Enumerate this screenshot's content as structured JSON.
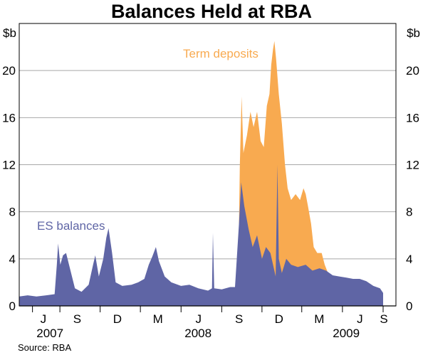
{
  "chart_data": {
    "type": "area",
    "title": "Balances Held at RBA",
    "unit_left": "$b",
    "unit_right": "$b",
    "ylim": [
      0,
      24
    ],
    "yticks": [
      0,
      4,
      8,
      12,
      16,
      20
    ],
    "xlim": [
      "2007-06-01",
      "2009-09-30"
    ],
    "month_ticks": [
      {
        "label": "J",
        "date": "2007-07-01"
      },
      {
        "label": "S",
        "date": "2007-09-01"
      },
      {
        "label": "D",
        "date": "2007-12-01"
      },
      {
        "label": "M",
        "date": "2008-03-01"
      },
      {
        "label": "J",
        "date": "2008-06-01"
      },
      {
        "label": "S",
        "date": "2008-09-01"
      },
      {
        "label": "D",
        "date": "2008-12-01"
      },
      {
        "label": "M",
        "date": "2009-03-01"
      },
      {
        "label": "J",
        "date": "2009-06-01"
      },
      {
        "label": "S",
        "date": "2009-09-01"
      }
    ],
    "year_labels": [
      {
        "label": "2007",
        "date": "2007-08-16"
      },
      {
        "label": "2008",
        "date": "2008-07-16"
      },
      {
        "label": "2009",
        "date": "2009-06-16"
      }
    ],
    "series": [
      {
        "name": "ES balances",
        "color": "#5f65a5",
        "points": [
          [
            "2007-06-01",
            0.8
          ],
          [
            "2007-06-20",
            0.9
          ],
          [
            "2007-07-10",
            0.8
          ],
          [
            "2007-08-01",
            0.9
          ],
          [
            "2007-08-20",
            1.0
          ],
          [
            "2007-08-25",
            3.5
          ],
          [
            "2007-08-28",
            5.3
          ],
          [
            "2007-09-02",
            3.5
          ],
          [
            "2007-09-08",
            4.3
          ],
          [
            "2007-09-15",
            4.5
          ],
          [
            "2007-09-25",
            3.0
          ],
          [
            "2007-10-05",
            1.5
          ],
          [
            "2007-10-20",
            1.2
          ],
          [
            "2007-11-05",
            1.8
          ],
          [
            "2007-11-15",
            3.5
          ],
          [
            "2007-11-20",
            4.3
          ],
          [
            "2007-11-28",
            2.5
          ],
          [
            "2007-12-08",
            4.0
          ],
          [
            "2007-12-15",
            5.8
          ],
          [
            "2007-12-20",
            6.6
          ],
          [
            "2007-12-28",
            4.5
          ],
          [
            "2008-01-05",
            2.0
          ],
          [
            "2008-01-20",
            1.7
          ],
          [
            "2008-02-10",
            1.8
          ],
          [
            "2008-02-25",
            2.0
          ],
          [
            "2008-03-10",
            2.3
          ],
          [
            "2008-03-20",
            3.5
          ],
          [
            "2008-03-28",
            4.2
          ],
          [
            "2008-04-05",
            5.0
          ],
          [
            "2008-04-12",
            3.8
          ],
          [
            "2008-04-25",
            2.5
          ],
          [
            "2008-05-10",
            2.0
          ],
          [
            "2008-06-01",
            1.7
          ],
          [
            "2008-06-20",
            1.8
          ],
          [
            "2008-07-10",
            1.5
          ],
          [
            "2008-08-01",
            1.3
          ],
          [
            "2008-08-10",
            1.5
          ],
          [
            "2008-08-12",
            6.2
          ],
          [
            "2008-08-15",
            1.5
          ],
          [
            "2008-09-01",
            1.4
          ],
          [
            "2008-09-20",
            1.6
          ],
          [
            "2008-10-01",
            1.6
          ],
          [
            "2008-10-05",
            4.0
          ],
          [
            "2008-10-10",
            7.0
          ],
          [
            "2008-10-15",
            10.5
          ],
          [
            "2008-10-22",
            8.5
          ],
          [
            "2008-11-01",
            6.5
          ],
          [
            "2008-11-10",
            5.0
          ],
          [
            "2008-11-20",
            6.0
          ],
          [
            "2008-12-01",
            4.0
          ],
          [
            "2008-12-10",
            5.0
          ],
          [
            "2008-12-20",
            4.5
          ],
          [
            "2009-01-01",
            2.5
          ],
          [
            "2009-01-05",
            12.0
          ],
          [
            "2009-01-08",
            4.0
          ],
          [
            "2009-01-15",
            2.8
          ],
          [
            "2009-01-25",
            4.0
          ],
          [
            "2009-02-05",
            3.5
          ],
          [
            "2009-02-20",
            3.3
          ],
          [
            "2009-03-10",
            3.5
          ],
          [
            "2009-03-25",
            3.0
          ],
          [
            "2009-04-10",
            3.2
          ],
          [
            "2009-04-25",
            3.0
          ],
          [
            "2009-05-10",
            2.6
          ],
          [
            "2009-05-25",
            2.5
          ],
          [
            "2009-06-10",
            2.4
          ],
          [
            "2009-06-25",
            2.3
          ],
          [
            "2009-07-10",
            2.3
          ],
          [
            "2009-07-25",
            2.1
          ],
          [
            "2009-08-10",
            1.7
          ],
          [
            "2009-08-25",
            1.5
          ],
          [
            "2009-09-01",
            1.1
          ]
        ]
      },
      {
        "name": "Term deposits",
        "color": "#f8aa50",
        "points": [
          [
            "2008-10-10",
            0.0
          ],
          [
            "2008-10-12",
            12.0
          ],
          [
            "2008-10-16",
            17.8
          ],
          [
            "2008-10-20",
            13.0
          ],
          [
            "2008-10-28",
            14.5
          ],
          [
            "2008-11-05",
            16.5
          ],
          [
            "2008-11-12",
            15.2
          ],
          [
            "2008-11-20",
            16.5
          ],
          [
            "2008-11-28",
            14.0
          ],
          [
            "2008-12-05",
            13.5
          ],
          [
            "2008-12-12",
            17.0
          ],
          [
            "2008-12-18",
            18.0
          ],
          [
            "2008-12-22",
            20.5
          ],
          [
            "2008-12-26",
            21.8
          ],
          [
            "2008-12-29",
            22.5
          ],
          [
            "2009-01-02",
            21.0
          ],
          [
            "2009-01-08",
            18.0
          ],
          [
            "2009-01-15",
            15.5
          ],
          [
            "2009-01-22",
            12.0
          ],
          [
            "2009-01-28",
            10.0
          ],
          [
            "2009-02-05",
            9.0
          ],
          [
            "2009-02-15",
            9.5
          ],
          [
            "2009-02-25",
            9.0
          ],
          [
            "2009-03-05",
            10.0
          ],
          [
            "2009-03-10",
            9.5
          ],
          [
            "2009-03-15",
            8.5
          ],
          [
            "2009-03-22",
            7.0
          ],
          [
            "2009-03-28",
            5.0
          ],
          [
            "2009-04-05",
            4.5
          ],
          [
            "2009-04-15",
            4.5
          ],
          [
            "2009-04-22",
            3.5
          ],
          [
            "2009-04-28",
            2.7
          ]
        ]
      }
    ],
    "annotations": [
      {
        "text": "ES balances",
        "series": "ES balances"
      },
      {
        "text": "Term deposits",
        "series": "Term deposits"
      }
    ],
    "source": "Source: RBA",
    "grid": true
  }
}
